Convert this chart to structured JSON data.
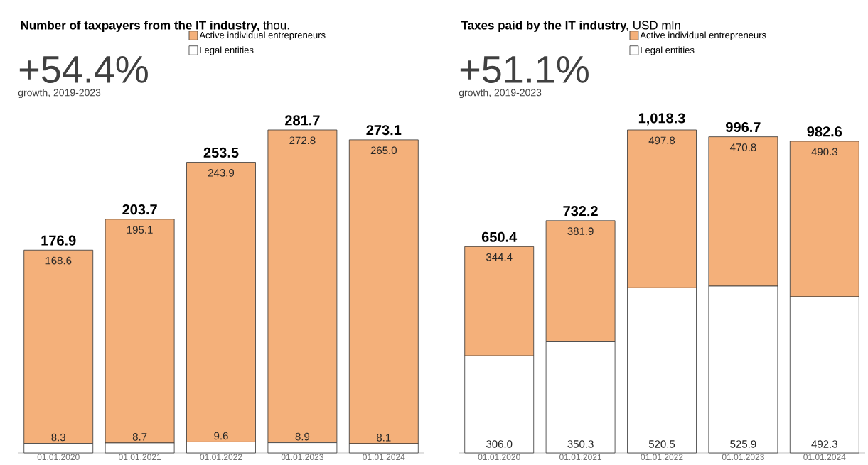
{
  "chart_data": [
    {
      "type": "bar",
      "stacked": true,
      "title": "**Number of taxpayers from the IT industry,** thou.",
      "annotations": [
        "+54.4%",
        "growth, 2019-2023"
      ],
      "legend": "top",
      "categories": [
        "01.01.2020",
        "01.01.2021",
        "01.01.2022",
        "01.01.2023",
        "01.01.2024"
      ],
      "series": [
        {
          "name": "Legal entities",
          "color": "#ffffff",
          "values": [
            8.3,
            8.7,
            9.6,
            8.9,
            8.1
          ],
          "value_labels": [
            "8.3",
            "8.7",
            "9.6",
            "8.9",
            "8.1"
          ]
        },
        {
          "name": "Active individual entrepreneurs",
          "color": "#f4b07a",
          "values": [
            168.6,
            195.1,
            243.9,
            272.8,
            265.0
          ],
          "value_labels": [
            "168.6",
            "195.1",
            "243.9",
            "272.8",
            "265.0"
          ]
        }
      ],
      "totals": [
        "176.9",
        "203.7",
        "253.5",
        "281.7",
        "273.1"
      ]
    },
    {
      "type": "bar",
      "stacked": true,
      "title": "**Taxes paid by the IT industry,** USD mln",
      "annotations": [
        "+51.1%",
        "growth, 2019-2023"
      ],
      "legend": "top",
      "categories": [
        "01.01.2020",
        "01.01.2021",
        "01.01.2022",
        "01.01.2023",
        "01.01.2024"
      ],
      "series": [
        {
          "name": "Legal entities",
          "color": "#ffffff",
          "values": [
            306.0,
            350.3,
            520.5,
            525.9,
            492.3
          ],
          "value_labels": [
            "306.0",
            "350.3",
            "520.5",
            "525.9",
            "492.3"
          ]
        },
        {
          "name": "Active individual entrepreneurs",
          "color": "#f4b07a",
          "values": [
            344.4,
            381.9,
            497.8,
            470.8,
            490.3
          ],
          "value_labels": [
            "344.4",
            "381.9",
            "497.8",
            "470.8",
            "490.3"
          ]
        }
      ],
      "totals": [
        "650.4",
        "732.2",
        "1,018.3",
        "996.7",
        "982.6"
      ]
    }
  ]
}
